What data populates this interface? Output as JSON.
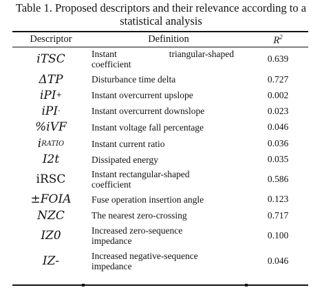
{
  "caption": {
    "line1": "Table 1. Proposed descriptors and their relevance according to a",
    "line2": "statistical analysis"
  },
  "headers": {
    "descriptor": "Descriptor",
    "definition": "Definition",
    "r2_base": "R",
    "r2_sup": "2"
  },
  "rows": [
    {
      "symbol": "iTSC",
      "definition_lines": [
        "Instant triangular-shaped",
        "coefficient"
      ],
      "r2": "0.639"
    },
    {
      "symbol": "ΔTP",
      "definition_lines": [
        "Disturbance time delta"
      ],
      "r2": "0.727"
    },
    {
      "symbol_base": "iPI",
      "symbol_sup": "+",
      "definition_lines": [
        "Instant overcurrent upslope"
      ],
      "r2": "0.002"
    },
    {
      "symbol_base": "iPI",
      "symbol_sup": "-",
      "definition_lines": [
        "Instant overcurrent downslope"
      ],
      "r2": "0.023"
    },
    {
      "symbol": "%iVF",
      "definition_lines": [
        "Instant voltage fall percentage"
      ],
      "r2": "0.046"
    },
    {
      "symbol_base": "i",
      "symbol_sub": "RATIO",
      "definition_lines": [
        "Instant current ratio"
      ],
      "r2": "0.036"
    },
    {
      "symbol": "I2t",
      "definition_lines": [
        "Dissipated energy"
      ],
      "r2": "0.035"
    },
    {
      "symbol": "iRSC",
      "definition_lines": [
        "Instant rectangular-shaped",
        "coefficient"
      ],
      "r2": "0.586"
    },
    {
      "symbol": "±FOIA",
      "definition_lines": [
        "Fuse operation insertion angle"
      ],
      "r2": "0.123"
    },
    {
      "symbol": "NZC",
      "definition_lines": [
        "The nearest zero-crossing"
      ],
      "r2": "0.717"
    },
    {
      "symbol": "IZ0",
      "definition_lines": [
        "Increased zero-sequence",
        "impedance"
      ],
      "r2": "0.100"
    },
    {
      "symbol": "IZ-",
      "definition_lines": [
        "Increased negative-sequence",
        "impedance"
      ],
      "r2": "0.046"
    }
  ]
}
